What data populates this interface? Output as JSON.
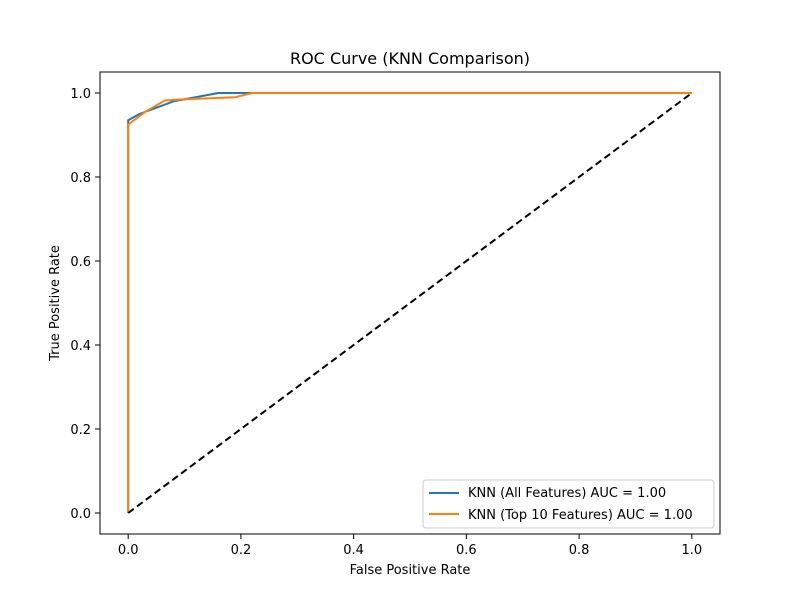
{
  "chart_data": {
    "type": "line",
    "title": "ROC Curve (KNN Comparison)",
    "xlabel": "False Positive Rate",
    "ylabel": "True Positive Rate",
    "xlim": [
      -0.05,
      1.05
    ],
    "ylim": [
      -0.05,
      1.05
    ],
    "xticks": [
      0.0,
      0.2,
      0.4,
      0.6,
      0.8,
      1.0
    ],
    "yticks": [
      0.0,
      0.2,
      0.4,
      0.6,
      0.8,
      1.0
    ],
    "xtick_labels": [
      "0.0",
      "0.2",
      "0.4",
      "0.6",
      "0.8",
      "1.0"
    ],
    "ytick_labels": [
      "0.0",
      "0.2",
      "0.4",
      "0.6",
      "0.8",
      "1.0"
    ],
    "grid": false,
    "legend_position": "lower-right",
    "series": [
      {
        "name": "KNN (All Features) AUC = 1.00",
        "color": "#1f77b4",
        "x": [
          0.0,
          0.0,
          0.02,
          0.08,
          0.16,
          0.22,
          1.0
        ],
        "y": [
          0.0,
          0.935,
          0.95,
          0.98,
          1.0,
          1.0,
          1.0
        ]
      },
      {
        "name": "KNN (Top 10 Features) AUC = 1.00",
        "color": "#ff7f0e",
        "x": [
          0.0,
          0.0,
          0.03,
          0.065,
          0.1,
          0.19,
          0.22,
          1.0
        ],
        "y": [
          0.0,
          0.925,
          0.955,
          0.982,
          0.985,
          0.99,
          1.0,
          1.0
        ]
      }
    ],
    "reference_line": {
      "name": "chance",
      "color": "#000000",
      "style": "dashed",
      "x": [
        0.0,
        1.0
      ],
      "y": [
        0.0,
        1.0
      ]
    }
  }
}
